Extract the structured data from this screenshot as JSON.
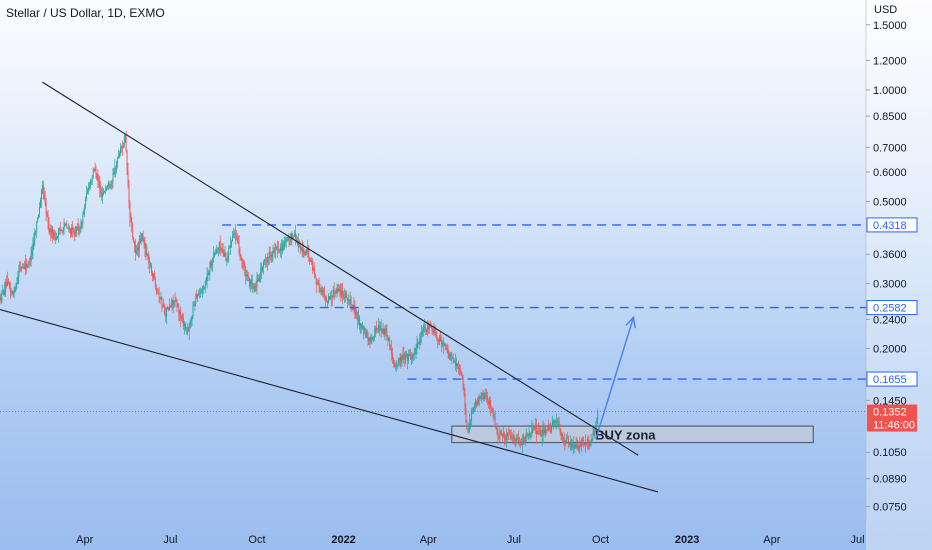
{
  "header": {
    "title": "Stellar / US Dollar, 1D, EXMO",
    "currency": "USD"
  },
  "colors": {
    "up": "#26a69a",
    "down": "#ef5350",
    "level": "#2962ff",
    "trendline": "#1c1f2b",
    "projection": "#4a86e8",
    "price_tag": "#ef5350",
    "level_tag": "#2962ff"
  },
  "chart_data": {
    "type": "candlestick",
    "symbol": "Stellar / US Dollar",
    "interval": "1D",
    "exchange": "EXMO",
    "y_scale": "log",
    "ylim": [
      0.068,
      1.75
    ],
    "xlim": [
      "2021-01-01",
      "2023-07-10"
    ],
    "x_ticks": [
      {
        "label": "Apr",
        "date": "2021-04-01"
      },
      {
        "label": "Jul",
        "date": "2021-07-01"
      },
      {
        "label": "Oct",
        "date": "2021-10-01"
      },
      {
        "label": "2022",
        "date": "2022-01-01",
        "bold": true
      },
      {
        "label": "Apr",
        "date": "2022-04-01"
      },
      {
        "label": "Jul",
        "date": "2022-07-01"
      },
      {
        "label": "Oct",
        "date": "2022-10-01"
      },
      {
        "label": "2023",
        "date": "2023-01-01",
        "bold": true
      },
      {
        "label": "Apr",
        "date": "2023-04-01"
      },
      {
        "label": "Jul",
        "date": "2023-07-01"
      }
    ],
    "y_ticks": [
      "1.5000",
      "1.2000",
      "1.0000",
      "0.8500",
      "0.7000",
      "0.6000",
      "0.5000",
      "0.3600",
      "0.3000",
      "0.2400",
      "0.2000",
      "0.1450",
      "0.1050",
      "0.0890",
      "0.0750"
    ],
    "price_path": [
      [
        "2021-01-01",
        0.27
      ],
      [
        "2021-01-08",
        0.3
      ],
      [
        "2021-01-15",
        0.28
      ],
      [
        "2021-01-22",
        0.33
      ],
      [
        "2021-02-01",
        0.34
      ],
      [
        "2021-02-10",
        0.45
      ],
      [
        "2021-02-15",
        0.55
      ],
      [
        "2021-02-22",
        0.42
      ],
      [
        "2021-03-01",
        0.4
      ],
      [
        "2021-03-10",
        0.43
      ],
      [
        "2021-03-20",
        0.41
      ],
      [
        "2021-03-28",
        0.43
      ],
      [
        "2021-04-05",
        0.55
      ],
      [
        "2021-04-12",
        0.62
      ],
      [
        "2021-04-18",
        0.52
      ],
      [
        "2021-04-25",
        0.55
      ],
      [
        "2021-05-01",
        0.58
      ],
      [
        "2021-05-08",
        0.68
      ],
      [
        "2021-05-14",
        0.74
      ],
      [
        "2021-05-19",
        0.45
      ],
      [
        "2021-05-25",
        0.36
      ],
      [
        "2021-06-01",
        0.4
      ],
      [
        "2021-06-10",
        0.33
      ],
      [
        "2021-06-21",
        0.27
      ],
      [
        "2021-06-26",
        0.25
      ],
      [
        "2021-07-05",
        0.27
      ],
      [
        "2021-07-20",
        0.22
      ],
      [
        "2021-07-28",
        0.28
      ],
      [
        "2021-08-05",
        0.29
      ],
      [
        "2021-08-14",
        0.35
      ],
      [
        "2021-08-22",
        0.38
      ],
      [
        "2021-08-30",
        0.35
      ],
      [
        "2021-09-06",
        0.42
      ],
      [
        "2021-09-12",
        0.37
      ],
      [
        "2021-09-20",
        0.31
      ],
      [
        "2021-09-28",
        0.29
      ],
      [
        "2021-10-06",
        0.33
      ],
      [
        "2021-10-14",
        0.36
      ],
      [
        "2021-10-22",
        0.37
      ],
      [
        "2021-10-30",
        0.38
      ],
      [
        "2021-11-09",
        0.41
      ],
      [
        "2021-11-17",
        0.37
      ],
      [
        "2021-11-25",
        0.36
      ],
      [
        "2021-12-04",
        0.3
      ],
      [
        "2021-12-14",
        0.27
      ],
      [
        "2021-12-25",
        0.29
      ],
      [
        "2022-01-03",
        0.28
      ],
      [
        "2022-01-10",
        0.26
      ],
      [
        "2022-01-20",
        0.23
      ],
      [
        "2022-01-28",
        0.21
      ],
      [
        "2022-02-07",
        0.23
      ],
      [
        "2022-02-16",
        0.22
      ],
      [
        "2022-02-24",
        0.18
      ],
      [
        "2022-03-05",
        0.19
      ],
      [
        "2022-03-15",
        0.19
      ],
      [
        "2022-03-25",
        0.22
      ],
      [
        "2022-04-04",
        0.23
      ],
      [
        "2022-04-14",
        0.21
      ],
      [
        "2022-04-24",
        0.19
      ],
      [
        "2022-05-03",
        0.18
      ],
      [
        "2022-05-08",
        0.16
      ],
      [
        "2022-05-12",
        0.12
      ],
      [
        "2022-05-20",
        0.14
      ],
      [
        "2022-05-30",
        0.15
      ],
      [
        "2022-06-07",
        0.14
      ],
      [
        "2022-06-13",
        0.118
      ],
      [
        "2022-06-20",
        0.116
      ],
      [
        "2022-06-30",
        0.114
      ],
      [
        "2022-07-10",
        0.112
      ],
      [
        "2022-07-20",
        0.122
      ],
      [
        "2022-07-30",
        0.118
      ],
      [
        "2022-08-09",
        0.122
      ],
      [
        "2022-08-14",
        0.13
      ],
      [
        "2022-08-22",
        0.114
      ],
      [
        "2022-08-30",
        0.11
      ],
      [
        "2022-09-06",
        0.108
      ],
      [
        "2022-09-13",
        0.113
      ],
      [
        "2022-09-20",
        0.11
      ],
      [
        "2022-09-26",
        0.124
      ],
      [
        "2022-09-28",
        0.135
      ]
    ],
    "horizontal_levels": [
      {
        "value": 0.4318,
        "label": "0.4318",
        "from": "2021-08-25"
      },
      {
        "value": 0.2582,
        "label": "0.2582",
        "from": "2021-09-18"
      },
      {
        "value": 0.1655,
        "label": "0.1655",
        "from": "2022-03-10"
      }
    ],
    "trendlines": [
      {
        "from": [
          "2021-02-15",
          1.05
        ],
        "to": [
          "2022-11-10",
          0.103
        ]
      },
      {
        "from": [
          "2021-01-01",
          0.255
        ],
        "to": [
          "2022-12-01",
          0.082
        ]
      }
    ],
    "projection_arrow": {
      "from": [
        "2022-09-26",
        0.114
      ],
      "to": [
        "2022-11-05",
        0.243
      ]
    },
    "zone": {
      "label": "BUY zona",
      "start": "2022-04-26",
      "end": "2023-05-15",
      "top": 0.1235,
      "bottom": 0.1115
    },
    "current_price": {
      "value": 0.1352,
      "label": "0.1352",
      "countdown": "11:46:00"
    }
  }
}
